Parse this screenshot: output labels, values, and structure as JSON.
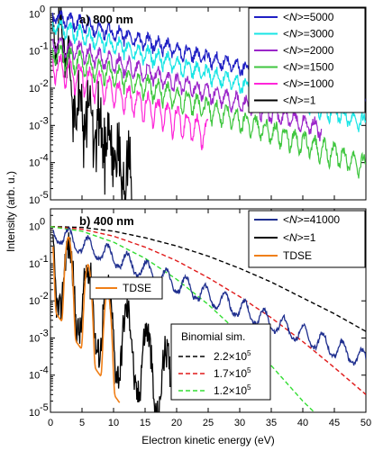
{
  "chart_data": [
    {
      "type": "line",
      "title": "a) 800 nm",
      "ylabel": "Intensity (arb. u.)",
      "yscale": "log",
      "ylim": [
        1e-05,
        1.5
      ],
      "xlim": [
        0,
        50
      ],
      "y_ticks": [
        "10",
        "10",
        "10",
        "10",
        "10",
        "10"
      ],
      "y_tick_exponents": [
        "-5",
        "-4",
        "-3",
        "-2",
        "-1",
        "0"
      ],
      "legend_position": "top-right",
      "series": [
        {
          "name": "<N>=5000",
          "label_parts": [
            "<",
            "N",
            ">=5000"
          ],
          "color": "#1f1fc4",
          "start": 0.9,
          "decay": 0.105,
          "amp": 0.35,
          "x_end": 50
        },
        {
          "name": "<N>=3000",
          "label_parts": [
            "<",
            "N",
            ">=3000"
          ],
          "color": "#19e5e5",
          "start": 0.5,
          "decay": 0.12,
          "amp": 0.4,
          "x_end": 50
        },
        {
          "name": "<N>=2000",
          "label_parts": [
            "<",
            "N",
            ">=2000"
          ],
          "color": "#9b26c9",
          "start": 0.18,
          "decay": 0.125,
          "amp": 0.45,
          "x_end": 43
        },
        {
          "name": "<N>=1500",
          "label_parts": [
            "<",
            "N",
            ">=1500"
          ],
          "color": "#3fc63f",
          "start": 0.1,
          "decay": 0.14,
          "amp": 0.55,
          "x_end": 50
        },
        {
          "name": "<N>=1000",
          "label_parts": [
            "<",
            "N",
            ">=1000"
          ],
          "color": "#ff26d9",
          "start": 0.05,
          "decay": 0.17,
          "amp": 0.7,
          "x_end": 25
        },
        {
          "name": "<N>=1",
          "label_parts": [
            "<",
            "N",
            ">=1"
          ],
          "color": "#000000",
          "start": 1.0,
          "decay": 0.55,
          "amp": 1.2,
          "x_end": 13
        }
      ]
    },
    {
      "type": "line",
      "title": "b) 400 nm",
      "xlabel": "Electron kinetic energy (eV)",
      "yscale": "log",
      "ylim": [
        1e-05,
        3
      ],
      "xlim": [
        0,
        50
      ],
      "x_ticks": [
        "0",
        "5",
        "10",
        "15",
        "20",
        "25",
        "30",
        "35",
        "40",
        "45",
        "50"
      ],
      "y_ticks": [
        "10",
        "10",
        "10",
        "10",
        "10",
        "10"
      ],
      "y_tick_exponents": [
        "-5",
        "-4",
        "-3",
        "-2",
        "-1",
        "0"
      ],
      "legend_position": "top-right",
      "series": [
        {
          "name": "<N>=41000",
          "label_parts": [
            "<",
            "N",
            ">=41000"
          ],
          "color": "#1f2f8f",
          "peak": 1.0,
          "decay": 0.16,
          "x_end": 50
        },
        {
          "name": "<N>=1",
          "label_parts": [
            "<",
            "N",
            ">=1"
          ],
          "color": "#000000",
          "peak": 1.0,
          "decay": 0.42,
          "x_end": 19
        },
        {
          "name": "TDSE",
          "label_parts": [
            "TDSE"
          ],
          "color": "#f07f17",
          "peak": 2.5,
          "decay": 0.55,
          "x_end": 11
        }
      ],
      "inset_legend": {
        "label": "TDSE",
        "color": "#f07f17"
      },
      "binomial_legend": {
        "title": "Binomial sim.",
        "entries": [
          {
            "mantissa": "2.2×10",
            "exponent": "5",
            "color": "#000000",
            "curve": [
              [
                0,
                1.0
              ],
              [
                5,
                0.95
              ],
              [
                10,
                0.75
              ],
              [
                15,
                0.5
              ],
              [
                20,
                0.3
              ],
              [
                25,
                0.16
              ],
              [
                30,
                0.075
              ],
              [
                35,
                0.032
              ],
              [
                40,
                0.012
              ],
              [
                45,
                0.0045
              ],
              [
                50,
                0.0015
              ]
            ]
          },
          {
            "mantissa": "1.7×10",
            "exponent": "5",
            "color": "#e01a1a",
            "curve": [
              [
                0,
                1.0
              ],
              [
                5,
                0.85
              ],
              [
                10,
                0.55
              ],
              [
                15,
                0.28
              ],
              [
                20,
                0.12
              ],
              [
                25,
                0.042
              ],
              [
                30,
                0.013
              ],
              [
                35,
                0.0035
              ],
              [
                40,
                0.0008
              ],
              [
                45,
                0.00016
              ],
              [
                50,
                3e-05
              ]
            ]
          },
          {
            "mantissa": "1.2×10",
            "exponent": "5",
            "color": "#33dd33",
            "curve": [
              [
                0,
                1.0
              ],
              [
                5,
                0.75
              ],
              [
                10,
                0.38
              ],
              [
                15,
                0.14
              ],
              [
                20,
                0.038
              ],
              [
                25,
                0.008
              ],
              [
                30,
                0.0013
              ],
              [
                35,
                0.00018
              ],
              [
                40,
                2e-05
              ],
              [
                45,
                3e-06
              ],
              [
                50,
                4e-07
              ]
            ]
          }
        ]
      }
    }
  ]
}
